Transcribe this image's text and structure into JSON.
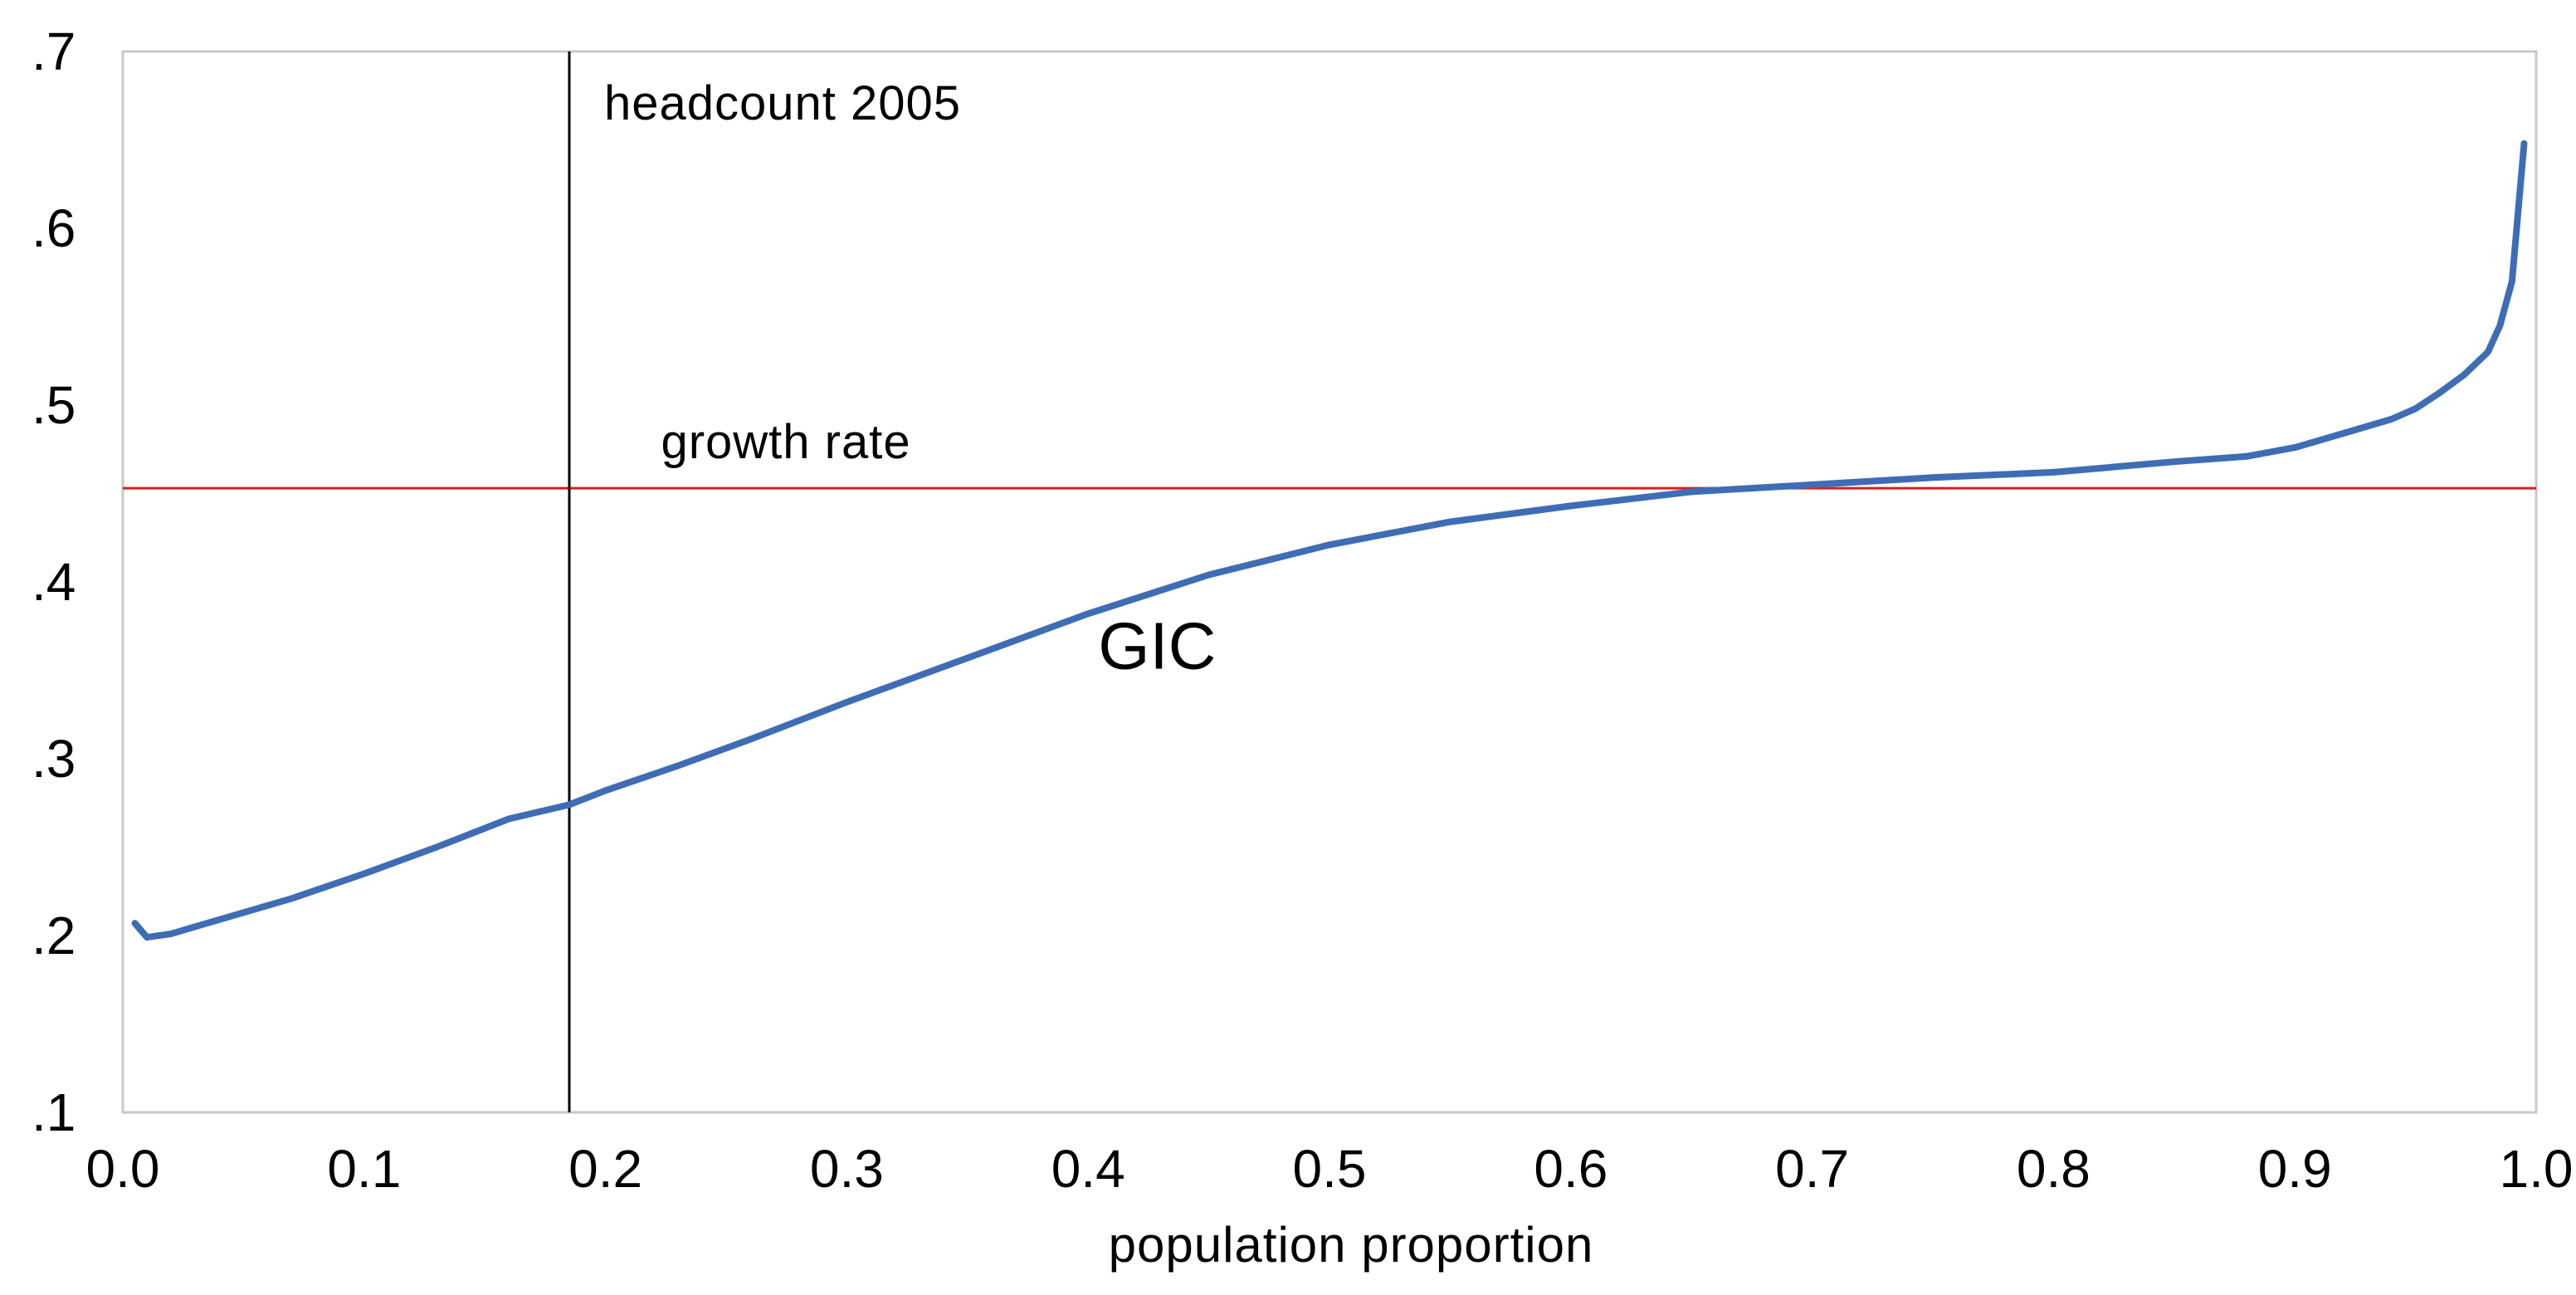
{
  "chart_data": {
    "type": "line",
    "title": "",
    "xlabel": "population proportion",
    "ylabel": "",
    "xlim": [
      0.0,
      1.0
    ],
    "ylim": [
      0.1,
      0.7
    ],
    "grid": false,
    "x_ticks": [
      0.0,
      0.1,
      0.2,
      0.3,
      0.4,
      0.5,
      0.6,
      0.7,
      0.8,
      0.9,
      1.0
    ],
    "x_tick_labels": [
      "0.0",
      "0.1",
      "0.2",
      "0.3",
      "0.4",
      "0.5",
      "0.6",
      "0.7",
      "0.8",
      "0.9",
      "1.0"
    ],
    "y_ticks": [
      0.1,
      0.2,
      0.3,
      0.4,
      0.5,
      0.6,
      0.7
    ],
    "y_tick_labels": [
      ".1",
      ".2",
      ".3",
      ".4",
      ".5",
      ".6",
      ".7"
    ],
    "series": [
      {
        "name": "GIC",
        "color": "#3f6db5",
        "x": [
          0.005,
          0.01,
          0.02,
          0.03,
          0.04,
          0.05,
          0.07,
          0.1,
          0.13,
          0.16,
          0.185,
          0.2,
          0.23,
          0.26,
          0.3,
          0.35,
          0.4,
          0.45,
          0.5,
          0.55,
          0.6,
          0.65,
          0.7,
          0.75,
          0.8,
          0.85,
          0.88,
          0.9,
          0.92,
          0.94,
          0.95,
          0.96,
          0.97,
          0.98,
          0.985,
          0.99,
          0.995
        ],
        "y": [
          0.207,
          0.199,
          0.201,
          0.205,
          0.209,
          0.213,
          0.221,
          0.235,
          0.25,
          0.266,
          0.274,
          0.282,
          0.296,
          0.311,
          0.332,
          0.357,
          0.382,
          0.404,
          0.421,
          0.434,
          0.443,
          0.451,
          0.455,
          0.459,
          0.462,
          0.468,
          0.471,
          0.476,
          0.484,
          0.492,
          0.498,
          0.507,
          0.517,
          0.53,
          0.545,
          0.57,
          0.648
        ]
      }
    ],
    "reference_lines": [
      {
        "orientation": "horizontal",
        "value": 0.453,
        "color": "#d42020",
        "label": "growth rate"
      },
      {
        "orientation": "vertical",
        "value": 0.185,
        "color": "#000000",
        "label": "headcount 2005"
      }
    ],
    "annotations": [
      {
        "text": "GIC",
        "x": 0.4,
        "y": 0.365
      }
    ]
  }
}
